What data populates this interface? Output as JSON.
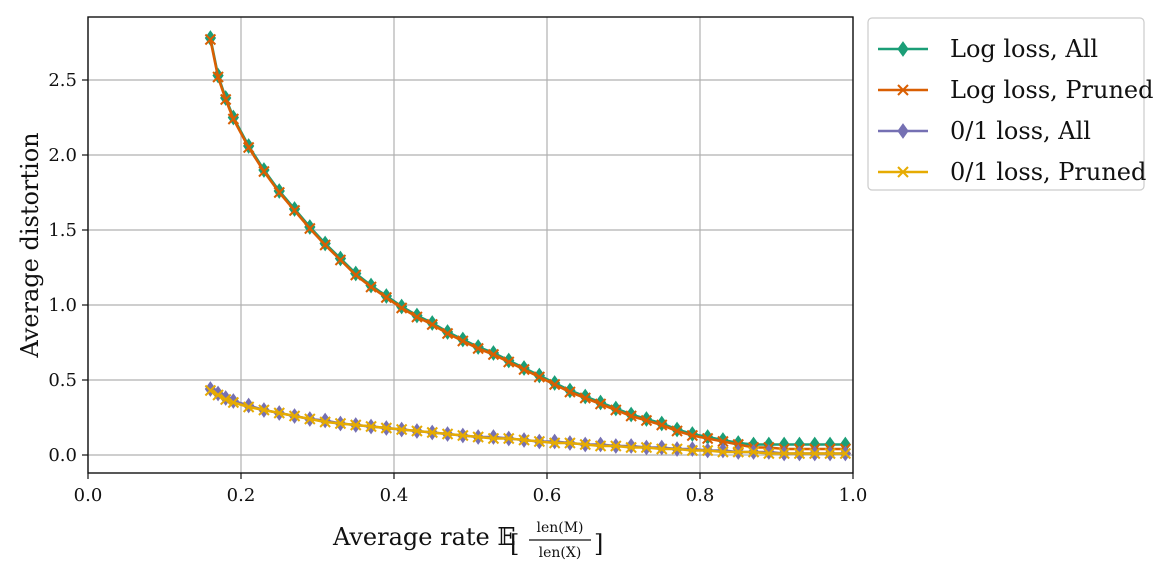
{
  "chart_data": {
    "type": "line",
    "x": [
      0.16,
      0.17,
      0.18,
      0.19,
      0.21,
      0.23,
      0.25,
      0.27,
      0.29,
      0.31,
      0.33,
      0.35,
      0.37,
      0.39,
      0.41,
      0.43,
      0.45,
      0.47,
      0.49,
      0.51,
      0.53,
      0.55,
      0.57,
      0.59,
      0.61,
      0.63,
      0.65,
      0.67,
      0.69,
      0.71,
      0.73,
      0.75,
      0.77,
      0.79,
      0.81,
      0.83,
      0.85,
      0.87,
      0.89,
      0.91,
      0.93,
      0.95,
      0.97,
      0.99
    ],
    "series": [
      {
        "name": "Log loss, All",
        "color": "#1b9e77",
        "marker": "diamond",
        "values": [
          2.78,
          2.53,
          2.38,
          2.25,
          2.06,
          1.9,
          1.76,
          1.64,
          1.52,
          1.41,
          1.31,
          1.21,
          1.13,
          1.06,
          0.99,
          0.93,
          0.88,
          0.82,
          0.77,
          0.72,
          0.68,
          0.63,
          0.58,
          0.53,
          0.48,
          0.43,
          0.39,
          0.35,
          0.31,
          0.27,
          0.24,
          0.21,
          0.17,
          0.14,
          0.12,
          0.1,
          0.08,
          0.07,
          0.07,
          0.07,
          0.07,
          0.07,
          0.07,
          0.07
        ]
      },
      {
        "name": "Log loss, Pruned",
        "color": "#d95f02",
        "marker": "x",
        "values": [
          2.77,
          2.52,
          2.37,
          2.24,
          2.05,
          1.89,
          1.75,
          1.63,
          1.51,
          1.4,
          1.3,
          1.2,
          1.12,
          1.05,
          0.98,
          0.92,
          0.87,
          0.81,
          0.76,
          0.71,
          0.67,
          0.62,
          0.57,
          0.52,
          0.47,
          0.42,
          0.38,
          0.34,
          0.3,
          0.26,
          0.23,
          0.2,
          0.16,
          0.13,
          0.11,
          0.09,
          0.07,
          0.05,
          0.05,
          0.04,
          0.04,
          0.04,
          0.04,
          0.04
        ]
      },
      {
        "name": "0/1 loss, All",
        "color": "#7570b3",
        "marker": "diamond",
        "values": [
          0.44,
          0.41,
          0.38,
          0.36,
          0.33,
          0.3,
          0.28,
          0.26,
          0.24,
          0.23,
          0.21,
          0.2,
          0.19,
          0.18,
          0.17,
          0.16,
          0.15,
          0.14,
          0.13,
          0.12,
          0.12,
          0.11,
          0.1,
          0.09,
          0.09,
          0.08,
          0.07,
          0.07,
          0.06,
          0.06,
          0.05,
          0.05,
          0.04,
          0.04,
          0.03,
          0.03,
          0.02,
          0.02,
          0.02,
          0.01,
          0.01,
          0.01,
          0.01,
          0.01
        ]
      },
      {
        "name": "0/1 loss, Pruned",
        "color": "#e6ab02",
        "marker": "x",
        "values": [
          0.43,
          0.4,
          0.37,
          0.35,
          0.32,
          0.3,
          0.28,
          0.26,
          0.24,
          0.22,
          0.21,
          0.2,
          0.19,
          0.18,
          0.17,
          0.16,
          0.15,
          0.14,
          0.13,
          0.12,
          0.11,
          0.11,
          0.1,
          0.09,
          0.08,
          0.08,
          0.07,
          0.06,
          0.06,
          0.05,
          0.05,
          0.04,
          0.04,
          0.03,
          0.03,
          0.02,
          0.02,
          0.02,
          0.01,
          0.01,
          0.01,
          0.01,
          0.01,
          0.01
        ]
      }
    ],
    "xlim": [
      0.0,
      1.0
    ],
    "ylim": [
      -0.12,
      2.92
    ],
    "xticks": [
      0.0,
      0.2,
      0.4,
      0.6,
      0.8,
      1.0
    ],
    "yticks": [
      0.0,
      0.5,
      1.0,
      1.5,
      2.0,
      2.5
    ],
    "xtick_labels": [
      "0.0",
      "0.2",
      "0.4",
      "0.6",
      "0.8",
      "1.0"
    ],
    "ytick_labels": [
      "0.0",
      "0.5",
      "1.0",
      "1.5",
      "2.0",
      "2.5"
    ],
    "xlabel_prefix": "Average rate 𝔼",
    "xlabel_numerator": "len(M)",
    "xlabel_denominator": "len(X)",
    "ylabel": "Average distortion",
    "grid": true,
    "legend_position": "outside-right-top"
  }
}
